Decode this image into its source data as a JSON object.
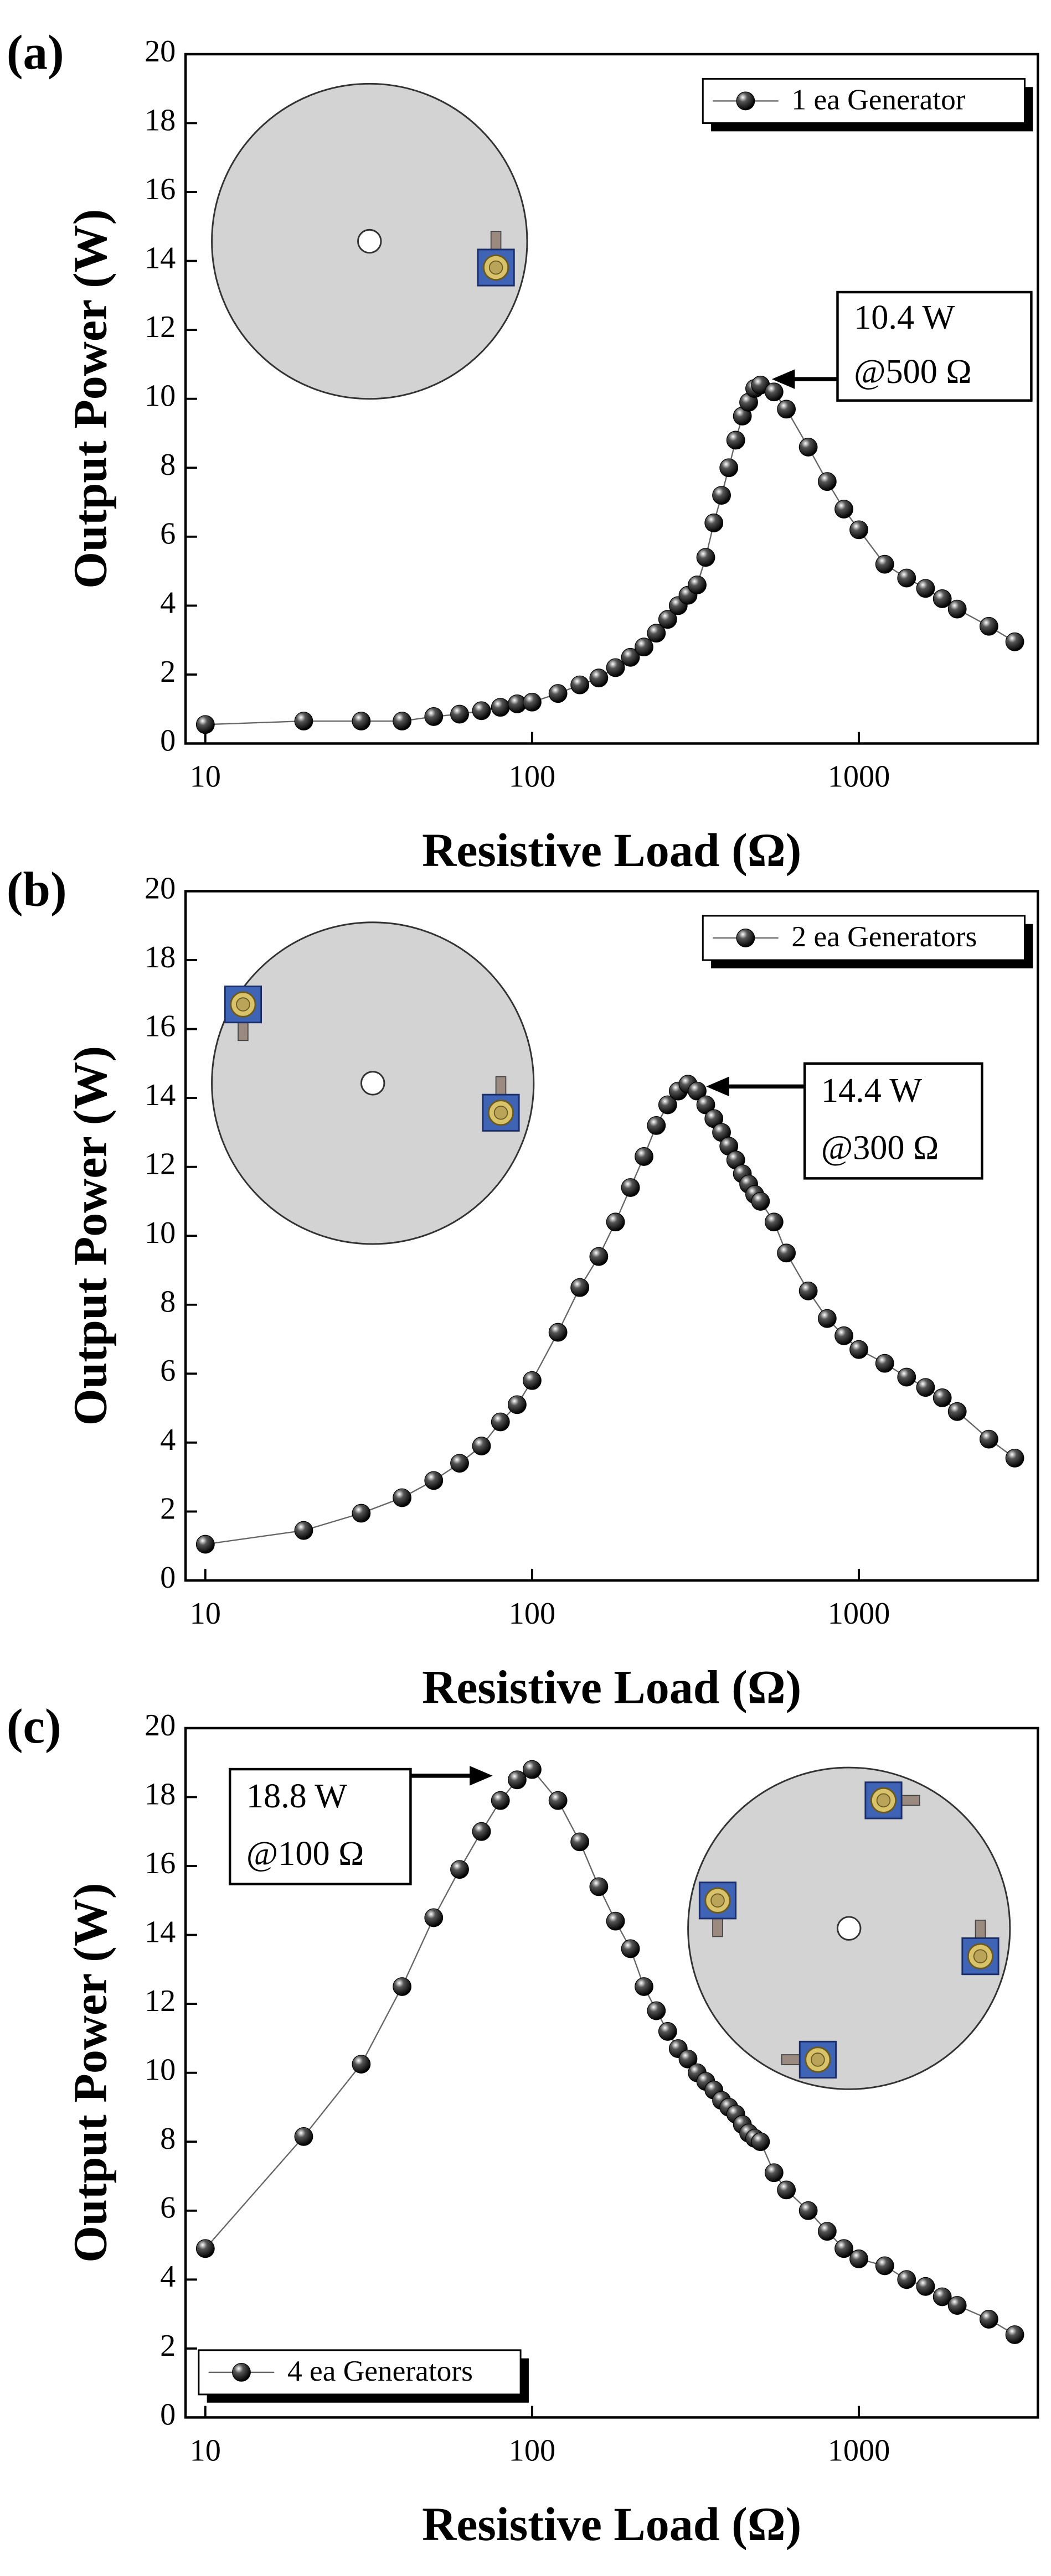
{
  "chart_data": [
    {
      "type": "line",
      "panel_label": "(a)",
      "xlabel": "Resistive Load (Ω)",
      "ylabel": "Output Power (W)",
      "xscale": "log",
      "xlim": [
        8.7,
        3530
      ],
      "ylim": [
        0,
        20
      ],
      "xticks": [
        10,
        100,
        1000
      ],
      "yticks": [
        0,
        2,
        4,
        6,
        8,
        10,
        12,
        14,
        16,
        18,
        20
      ],
      "legend": "upper right",
      "annotation": [
        "10.4 W",
        "@500 Ω"
      ],
      "x": [
        10,
        20,
        30,
        40,
        50,
        60,
        70,
        80,
        90,
        100,
        120,
        140,
        160,
        180,
        200,
        220,
        240,
        260,
        280,
        300,
        320,
        340,
        360,
        380,
        400,
        420,
        440,
        460,
        480,
        500,
        550,
        600,
        700,
        800,
        900,
        1000,
        1200,
        1400,
        1600,
        1800,
        2000,
        2500,
        3000
      ],
      "series": [
        {
          "name": "1 ea Generator",
          "color": "#000000",
          "values": [
            0.55,
            0.65,
            0.65,
            0.65,
            0.78,
            0.85,
            0.95,
            1.05,
            1.15,
            1.2,
            1.45,
            1.7,
            1.9,
            2.2,
            2.5,
            2.8,
            3.2,
            3.6,
            4.0,
            4.3,
            4.6,
            5.4,
            6.4,
            7.2,
            8.0,
            8.8,
            9.5,
            9.9,
            10.3,
            10.4,
            10.2,
            9.7,
            8.6,
            7.6,
            6.8,
            6.2,
            5.2,
            4.8,
            4.5,
            4.2,
            3.9,
            3.4,
            2.95
          ]
        }
      ]
    },
    {
      "type": "line",
      "panel_label": "(b)",
      "xlabel": "Resistive Load (Ω)",
      "ylabel": "Output Power (W)",
      "xscale": "log",
      "xlim": [
        8.7,
        3530
      ],
      "ylim": [
        0,
        20
      ],
      "xticks": [
        10,
        100,
        1000
      ],
      "yticks": [
        0,
        2,
        4,
        6,
        8,
        10,
        12,
        14,
        16,
        18,
        20
      ],
      "legend": "upper right",
      "annotation": [
        "14.4 W",
        "@300 Ω"
      ],
      "x": [
        10,
        20,
        30,
        40,
        50,
        60,
        70,
        80,
        90,
        100,
        120,
        140,
        160,
        180,
        200,
        220,
        240,
        260,
        280,
        300,
        320,
        340,
        360,
        380,
        400,
        420,
        440,
        460,
        480,
        500,
        550,
        600,
        700,
        800,
        900,
        1000,
        1200,
        1400,
        1600,
        1800,
        2000,
        2500,
        3000
      ],
      "series": [
        {
          "name": "2 ea Generators",
          "color": "#000000",
          "values": [
            1.05,
            1.45,
            1.95,
            2.4,
            2.9,
            3.4,
            3.9,
            4.6,
            5.1,
            5.8,
            7.2,
            8.5,
            9.4,
            10.4,
            11.4,
            12.3,
            13.2,
            13.8,
            14.2,
            14.4,
            14.2,
            13.8,
            13.4,
            13.0,
            12.6,
            12.2,
            11.8,
            11.5,
            11.2,
            11.0,
            10.4,
            9.5,
            8.4,
            7.6,
            7.1,
            6.7,
            6.3,
            5.9,
            5.6,
            5.3,
            4.9,
            4.1,
            3.55
          ]
        }
      ]
    },
    {
      "type": "line",
      "panel_label": "(c)",
      "xlabel": "Resistive Load (Ω)",
      "ylabel": "Output Power (W)",
      "xscale": "log",
      "xlim": [
        8.7,
        3530
      ],
      "ylim": [
        0,
        20
      ],
      "xticks": [
        10,
        100,
        1000
      ],
      "yticks": [
        0,
        2,
        4,
        6,
        8,
        10,
        12,
        14,
        16,
        18,
        20
      ],
      "legend": "lower left",
      "annotation": [
        "18.8 W",
        "@100 Ω"
      ],
      "x": [
        10,
        20,
        30,
        40,
        50,
        60,
        70,
        80,
        90,
        100,
        120,
        140,
        160,
        180,
        200,
        220,
        240,
        260,
        280,
        300,
        320,
        340,
        360,
        380,
        400,
        420,
        440,
        460,
        480,
        500,
        550,
        600,
        700,
        800,
        900,
        1000,
        1200,
        1400,
        1600,
        1800,
        2000,
        2500,
        3000
      ],
      "series": [
        {
          "name": "4 ea Generators",
          "color": "#000000",
          "values": [
            4.9,
            8.15,
            10.25,
            12.5,
            14.5,
            15.9,
            17.0,
            17.9,
            18.5,
            18.8,
            17.9,
            16.7,
            15.4,
            14.4,
            13.6,
            12.5,
            11.8,
            11.2,
            10.7,
            10.4,
            10.0,
            9.75,
            9.5,
            9.2,
            9.0,
            8.8,
            8.5,
            8.25,
            8.1,
            8.0,
            7.1,
            6.6,
            6.0,
            5.4,
            4.9,
            4.6,
            4.4,
            4.0,
            3.8,
            3.5,
            3.25,
            2.85,
            2.4
          ]
        }
      ]
    }
  ]
}
